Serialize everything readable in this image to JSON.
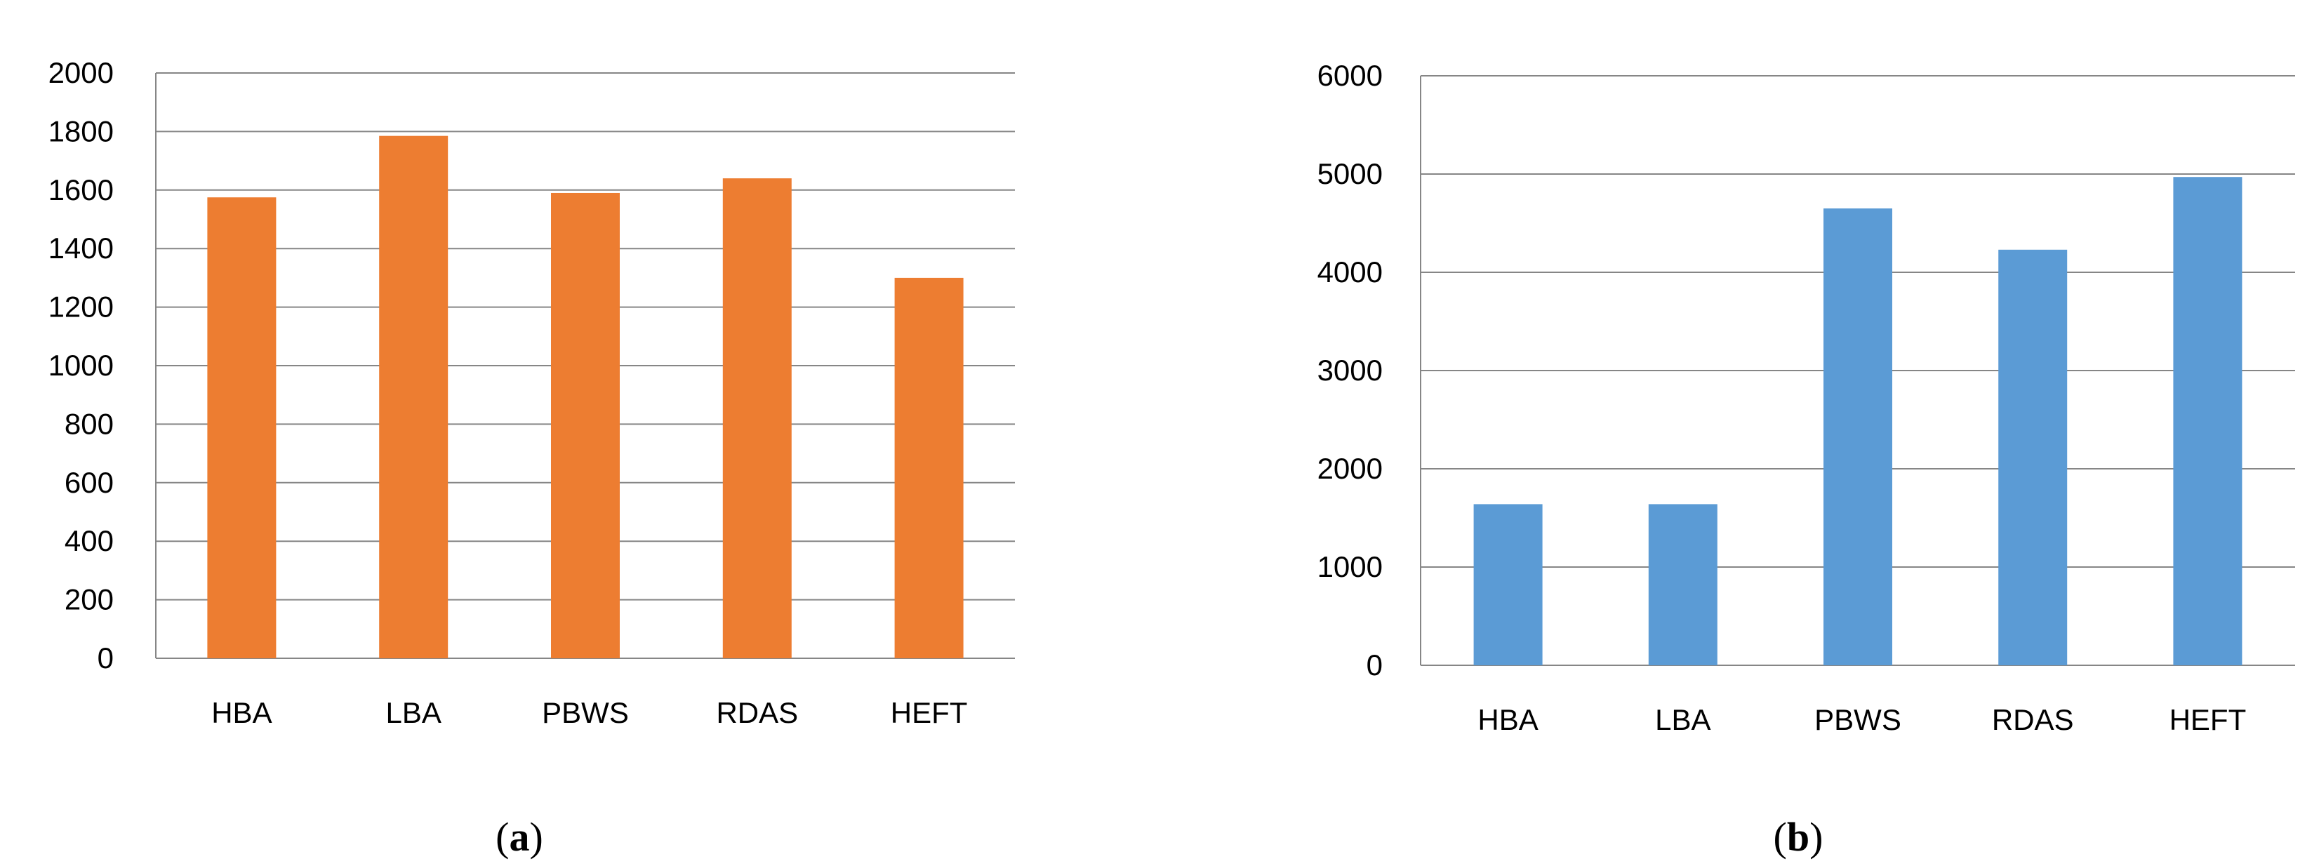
{
  "chart_data": [
    {
      "type": "bar",
      "panel_label": "a",
      "categories": [
        "HBA",
        "LBA",
        "PBWS",
        "RDAS",
        "HEFT"
      ],
      "values": [
        1575,
        1785,
        1590,
        1640,
        1300
      ],
      "ylim": [
        0,
        2000
      ],
      "yticks": [
        "0",
        "200",
        "400",
        "600",
        "800",
        "1000",
        "1200",
        "1400",
        "1600",
        "1800",
        "2000"
      ],
      "grid": true,
      "color": "#ED7D31",
      "title": "",
      "xlabel": "",
      "ylabel": ""
    },
    {
      "type": "bar",
      "panel_label": "b",
      "categories": [
        "HBA",
        "LBA",
        "PBWS",
        "RDAS",
        "HEFT"
      ],
      "values": [
        1640,
        1640,
        4650,
        4230,
        4970
      ],
      "ylim": [
        0,
        6000
      ],
      "yticks": [
        "0",
        "1000",
        "2000",
        "3000",
        "4000",
        "5000",
        "6000"
      ],
      "grid": true,
      "color": "#5B9BD5",
      "title": "",
      "xlabel": "",
      "ylabel": ""
    }
  ]
}
